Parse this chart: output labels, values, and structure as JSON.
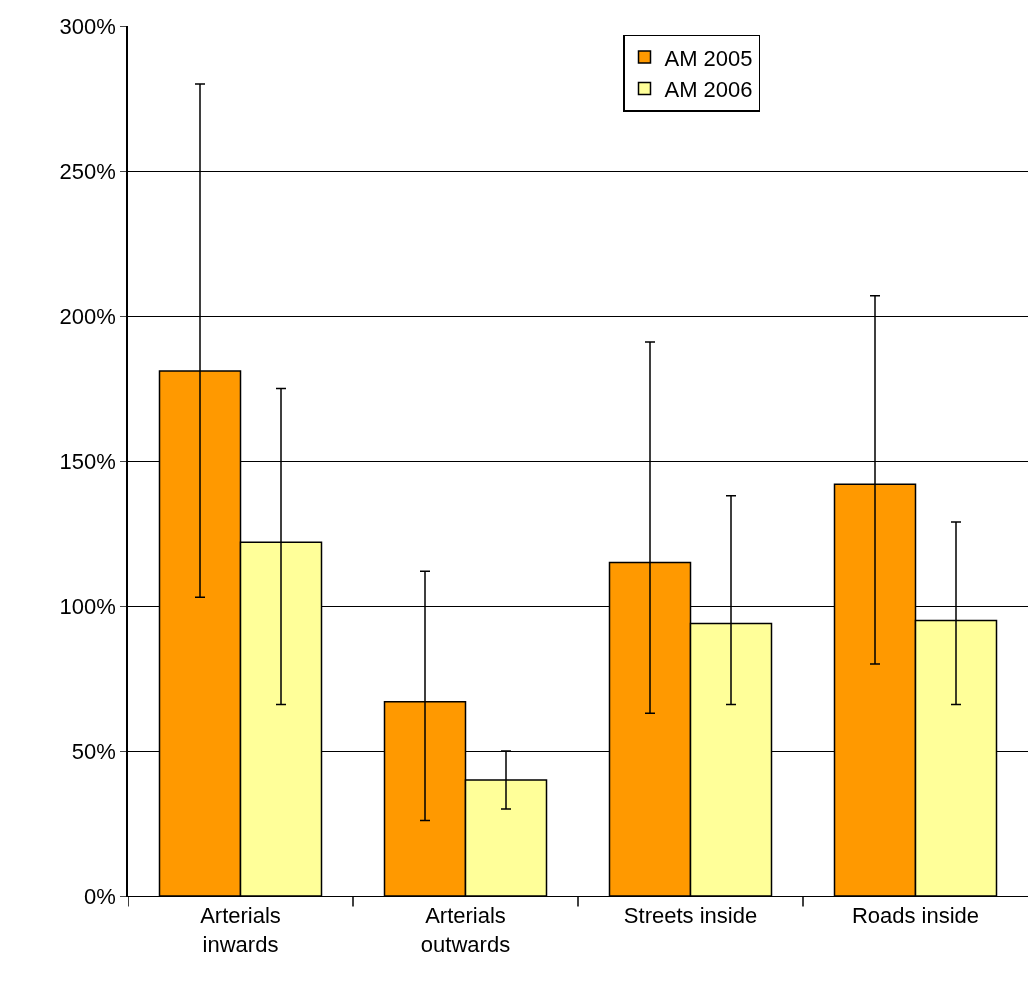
{
  "chart_data": {
    "type": "bar",
    "categories": [
      "Arterials\ninwards",
      "Arterials\noutwards",
      "Streets inside",
      "Roads inside"
    ],
    "series": [
      {
        "name": "AM 2005",
        "color": "#ff9900",
        "values": [
          181,
          67,
          115,
          142
        ],
        "errors": [
          [
            103,
            280
          ],
          [
            26,
            112
          ],
          [
            63,
            191
          ],
          [
            80,
            207
          ]
        ]
      },
      {
        "name": "AM 2006",
        "color": "#ffff99",
        "values": [
          122,
          40,
          94,
          95
        ],
        "errors": [
          [
            66,
            175
          ],
          [
            30,
            50
          ],
          [
            66,
            138
          ],
          [
            66,
            129
          ]
        ]
      }
    ],
    "ylim": [
      0,
      300
    ],
    "yticks": [
      {
        "value": 0,
        "label": "0%"
      },
      {
        "value": 50,
        "label": "50%"
      },
      {
        "value": 100,
        "label": "100%"
      },
      {
        "value": 150,
        "label": "150%"
      },
      {
        "value": 200,
        "label": "200%"
      },
      {
        "value": 250,
        "label": "250%"
      },
      {
        "value": 300,
        "label": "300%"
      }
    ],
    "grid": "y",
    "legend": "top right"
  }
}
